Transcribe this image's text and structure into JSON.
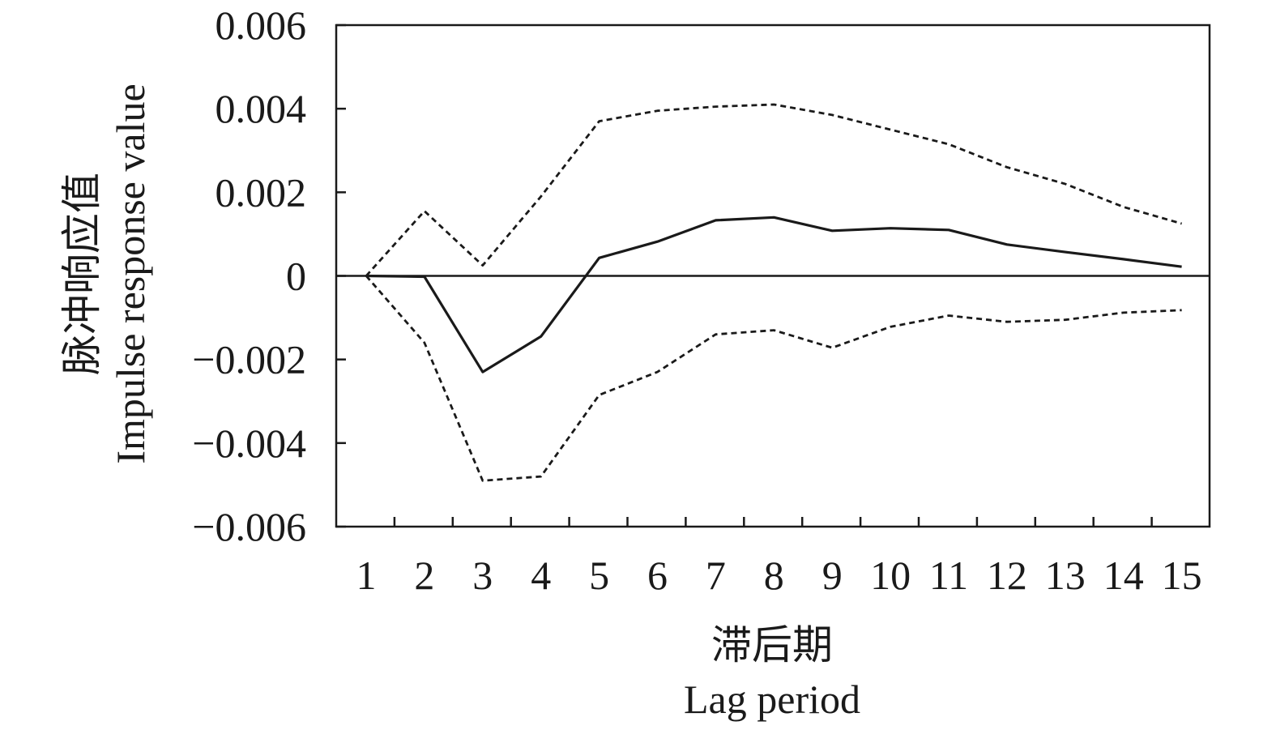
{
  "chart_data": {
    "type": "line",
    "x": [
      1,
      2,
      3,
      4,
      5,
      6,
      7,
      8,
      9,
      10,
      11,
      12,
      13,
      14,
      15
    ],
    "xticks": [
      "1",
      "2",
      "3",
      "4",
      "5",
      "6",
      "7",
      "8",
      "9",
      "10",
      "11",
      "12",
      "13",
      "14",
      "15"
    ],
    "xlabel_cn": "滞后期",
    "xlabel_en": "Lag period",
    "ylabel_cn": "脉冲响应值",
    "ylabel_en": "Impulse response value",
    "ylim": [
      -0.006,
      0.006
    ],
    "yticks": [
      "0.006",
      "0.004",
      "0.002",
      "0",
      "−0.002",
      "−0.004",
      "−0.006"
    ],
    "ytick_values": [
      0.006,
      0.004,
      0.002,
      0,
      -0.002,
      -0.004,
      -0.006
    ],
    "zero_line": true,
    "grid": false,
    "series": [
      {
        "style": "dashed",
        "values": [
          0.0,
          0.00155,
          0.00025,
          0.0019,
          0.0037,
          0.00395,
          0.00405,
          0.0041,
          0.00385,
          0.0035,
          0.00315,
          0.0026,
          0.0022,
          0.00165,
          0.00125
        ]
      },
      {
        "style": "solid",
        "values": [
          0.0,
          -2e-05,
          -0.0023,
          -0.00145,
          0.00043,
          0.00082,
          0.00133,
          0.0014,
          0.00108,
          0.00114,
          0.0011,
          0.00075,
          0.00057,
          0.0004,
          0.00022
        ]
      },
      {
        "style": "dashed",
        "values": [
          0.0,
          -0.0016,
          -0.0049,
          -0.0048,
          -0.00285,
          -0.0023,
          -0.0014,
          -0.0013,
          -0.00172,
          -0.00122,
          -0.00095,
          -0.0011,
          -0.00105,
          -0.00088,
          -0.00082
        ]
      }
    ]
  }
}
